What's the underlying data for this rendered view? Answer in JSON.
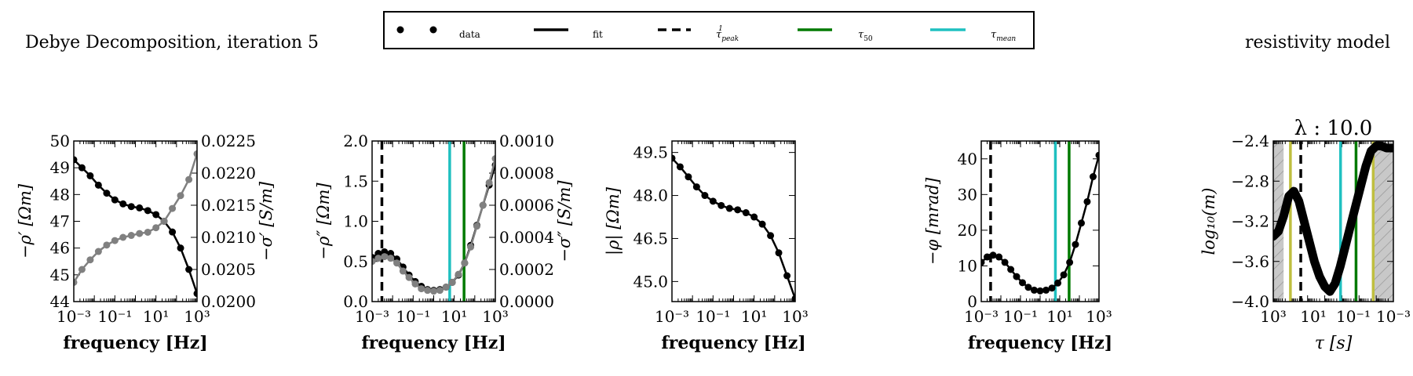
{
  "header": {
    "left_title": "Debye Decomposition, iteration 5",
    "right_title": "resistivity model"
  },
  "legend": {
    "entries": [
      {
        "label": "data",
        "style": "points",
        "color": "#000000"
      },
      {
        "label": "fit",
        "style": "solid",
        "color": "#000000"
      },
      {
        "label": "τ",
        "sub": "peak",
        "sup": "1",
        "style": "dashed",
        "color": "#000000"
      },
      {
        "label": "τ",
        "sub": "50",
        "style": "solid",
        "color": "#007a00"
      },
      {
        "label": "τ",
        "sub": "mean",
        "style": "solid",
        "color": "#1fc0c0"
      }
    ]
  },
  "colors": {
    "black": "#000000",
    "gray": "#808080",
    "green": "#007a00",
    "cyan": "#1fc0c0",
    "yellow": "#bfbf3f",
    "hatch_fill": "#c8c8c8"
  },
  "chart_data": [
    {
      "type": "line",
      "id": "p1",
      "xlabel": "frequency [Hz]",
      "ylabel": "−ρ′ [Ωm]",
      "ylabel_right": "−σ′ [S/m]",
      "xscale": "log",
      "xlim": [
        0.001,
        1000
      ],
      "xticks": [
        "10⁻³",
        "10⁻¹",
        "10¹",
        "10³"
      ],
      "ylim": [
        44,
        50
      ],
      "yticks": [
        "44",
        "45",
        "46",
        "47",
        "48",
        "49",
        "50"
      ],
      "ylim_right": [
        0.02,
        0.0225
      ],
      "yticks_right": [
        "0.0200",
        "0.0205",
        "0.0210",
        "0.0215",
        "0.0220",
        "0.0225"
      ],
      "series": [
        {
          "axis": "left",
          "color": "black",
          "x": [
            0.001,
            0.0025,
            0.0063,
            0.0158,
            0.04,
            0.1,
            0.25,
            0.63,
            1.58,
            4,
            10,
            25,
            63,
            158,
            400,
            1000
          ],
          "y": [
            49.3,
            49.0,
            48.7,
            48.35,
            48.05,
            47.8,
            47.65,
            47.55,
            47.5,
            47.4,
            47.25,
            47.0,
            46.6,
            46.0,
            45.2,
            44.3
          ]
        },
        {
          "axis": "right",
          "color": "gray",
          "x": [
            0.001,
            0.0025,
            0.0063,
            0.0158,
            0.04,
            0.1,
            0.25,
            0.63,
            1.58,
            4,
            10,
            25,
            63,
            158,
            400,
            1000
          ],
          "y": [
            0.0203,
            0.0205,
            0.02065,
            0.02078,
            0.02088,
            0.02095,
            0.021,
            0.02103,
            0.02106,
            0.02108,
            0.02115,
            0.02125,
            0.02145,
            0.02165,
            0.0219,
            0.0223
          ]
        }
      ]
    },
    {
      "type": "line",
      "id": "p2",
      "xlabel": "frequency [Hz]",
      "ylabel": "−ρ″ [Ωm]",
      "ylabel_right": "−σ″ [S/m]",
      "xscale": "log",
      "xlim": [
        0.001,
        1000
      ],
      "xticks": [
        "10⁻³",
        "10⁻¹",
        "10¹",
        "10³"
      ],
      "ylim": [
        0,
        2.0
      ],
      "yticks": [
        "0.0",
        "0.5",
        "1.0",
        "1.5",
        "2.0"
      ],
      "ylim_right": [
        0,
        0.001
      ],
      "yticks_right": [
        "0.0000",
        "0.0002",
        "0.0004",
        "0.0006",
        "0.0008",
        "0.0010"
      ],
      "vlines": [
        {
          "x": 0.003,
          "color": "black",
          "style": "dashed"
        },
        {
          "x": 6,
          "color": "cyan",
          "style": "solid"
        },
        {
          "x": 30,
          "color": "green",
          "style": "solid"
        }
      ],
      "series": [
        {
          "axis": "left",
          "color": "black",
          "x": [
            0.001,
            0.002,
            0.004,
            0.008,
            0.016,
            0.032,
            0.063,
            0.126,
            0.25,
            0.5,
            1,
            2,
            4,
            8,
            16,
            32,
            63,
            126,
            250,
            500,
            1000
          ],
          "y": [
            0.55,
            0.6,
            0.62,
            0.6,
            0.53,
            0.43,
            0.33,
            0.25,
            0.19,
            0.15,
            0.14,
            0.15,
            0.18,
            0.24,
            0.33,
            0.48,
            0.7,
            0.95,
            1.2,
            1.45,
            1.7
          ]
        },
        {
          "axis": "right",
          "color": "gray",
          "x": [
            0.001,
            0.002,
            0.004,
            0.008,
            0.016,
            0.032,
            0.063,
            0.126,
            0.25,
            0.5,
            1,
            2,
            4,
            8,
            16,
            32,
            63,
            126,
            250,
            500,
            1000
          ],
          "y": [
            0.00025,
            0.00027,
            0.00028,
            0.00027,
            0.00024,
            0.00019,
            0.00015,
            0.00011,
            8e-05,
            7e-05,
            6.5e-05,
            7e-05,
            9e-05,
            0.00012,
            0.00017,
            0.00024,
            0.00034,
            0.00047,
            0.0006,
            0.00074,
            0.00089
          ]
        }
      ]
    },
    {
      "type": "line",
      "id": "p3",
      "xlabel": "frequency [Hz]",
      "ylabel": "|ρ| [Ωm]",
      "xscale": "log",
      "xlim": [
        0.001,
        1000
      ],
      "xticks": [
        "10⁻³",
        "10⁻¹",
        "10¹",
        "10³"
      ],
      "ylim": [
        44.3,
        49.9
      ],
      "yticks": [
        "45.0",
        "46.5",
        "48.0",
        "49.5"
      ],
      "ytick_values": [
        45.0,
        46.5,
        48.0,
        49.5
      ],
      "series": [
        {
          "axis": "left",
          "color": "black",
          "x": [
            0.001,
            0.0025,
            0.0063,
            0.0158,
            0.04,
            0.1,
            0.25,
            0.63,
            1.58,
            4,
            10,
            25,
            63,
            158,
            400,
            1000
          ],
          "y": [
            49.3,
            49.0,
            48.65,
            48.3,
            48.0,
            47.8,
            47.65,
            47.55,
            47.5,
            47.4,
            47.25,
            47.0,
            46.6,
            46.0,
            45.2,
            44.4
          ]
        }
      ]
    },
    {
      "type": "line",
      "id": "p4",
      "xlabel": "frequency [Hz]",
      "ylabel": "−φ [mrad]",
      "xscale": "log",
      "xlim": [
        0.001,
        1000
      ],
      "xticks": [
        "10⁻³",
        "10⁻¹",
        "10¹",
        "10³"
      ],
      "ylim": [
        0,
        45
      ],
      "yticks": [
        "0",
        "10",
        "20",
        "30",
        "40"
      ],
      "ytick_values": [
        0,
        10,
        20,
        30,
        40
      ],
      "vlines": [
        {
          "x": 0.003,
          "color": "black",
          "style": "dashed"
        },
        {
          "x": 6,
          "color": "cyan",
          "style": "solid"
        },
        {
          "x": 30,
          "color": "green",
          "style": "solid"
        }
      ],
      "series": [
        {
          "axis": "left",
          "color": "black",
          "x": [
            0.001,
            0.002,
            0.004,
            0.008,
            0.016,
            0.032,
            0.063,
            0.126,
            0.25,
            0.5,
            1,
            2,
            4,
            8,
            16,
            32,
            63,
            126,
            250,
            500,
            1000
          ],
          "y": [
            11,
            12.5,
            13,
            12.5,
            11,
            9,
            7,
            5.3,
            4,
            3.2,
            3,
            3.2,
            3.8,
            5.2,
            7.5,
            11,
            16,
            22,
            28,
            35,
            41
          ]
        }
      ]
    },
    {
      "type": "line",
      "id": "p5",
      "title": "λ : 10.0",
      "xlabel": "τ [s]",
      "ylabel": "log₁₀(m)",
      "xscale": "log",
      "xaxis_reversed": true,
      "xlim": [
        1000,
        0.0001
      ],
      "xticks": [
        "10³",
        "10¹",
        "10⁻¹",
        "10⁻³"
      ],
      "ylim": [
        -4.0,
        -2.4
      ],
      "yticks": [
        "−4.0",
        "−3.6",
        "−3.2",
        "−2.8",
        "−2.4"
      ],
      "ytick_values": [
        -4.0,
        -3.6,
        -3.2,
        -2.8,
        -2.4
      ],
      "shaded_x_ranges": [
        [
          1000,
          250
        ],
        [
          0.0015,
          0.0001
        ]
      ],
      "vlines": [
        {
          "x": 100,
          "color": "yellow",
          "style": "solid"
        },
        {
          "x": 25,
          "color": "black",
          "style": "dashed"
        },
        {
          "x": 0.12,
          "color": "cyan",
          "style": "solid"
        },
        {
          "x": 0.015,
          "color": "green",
          "style": "solid"
        },
        {
          "x": 0.0015,
          "color": "yellow",
          "style": "solid"
        }
      ],
      "series": [
        {
          "axis": "left",
          "color": "black",
          "x": [
            1000,
            500,
            250,
            125,
            63,
            32,
            16,
            8,
            4,
            2,
            1,
            0.5,
            0.25,
            0.125,
            0.063,
            0.032,
            0.016,
            0.008,
            0.004,
            0.002,
            0.001,
            0.0005,
            0.00025,
            0.0001
          ],
          "y": [
            -3.35,
            -3.3,
            -3.15,
            -2.95,
            -2.9,
            -3.0,
            -3.2,
            -3.4,
            -3.6,
            -3.75,
            -3.85,
            -3.9,
            -3.82,
            -3.65,
            -3.45,
            -3.25,
            -3.05,
            -2.85,
            -2.65,
            -2.5,
            -2.45,
            -2.45,
            -2.47,
            -2.47
          ]
        }
      ]
    }
  ]
}
